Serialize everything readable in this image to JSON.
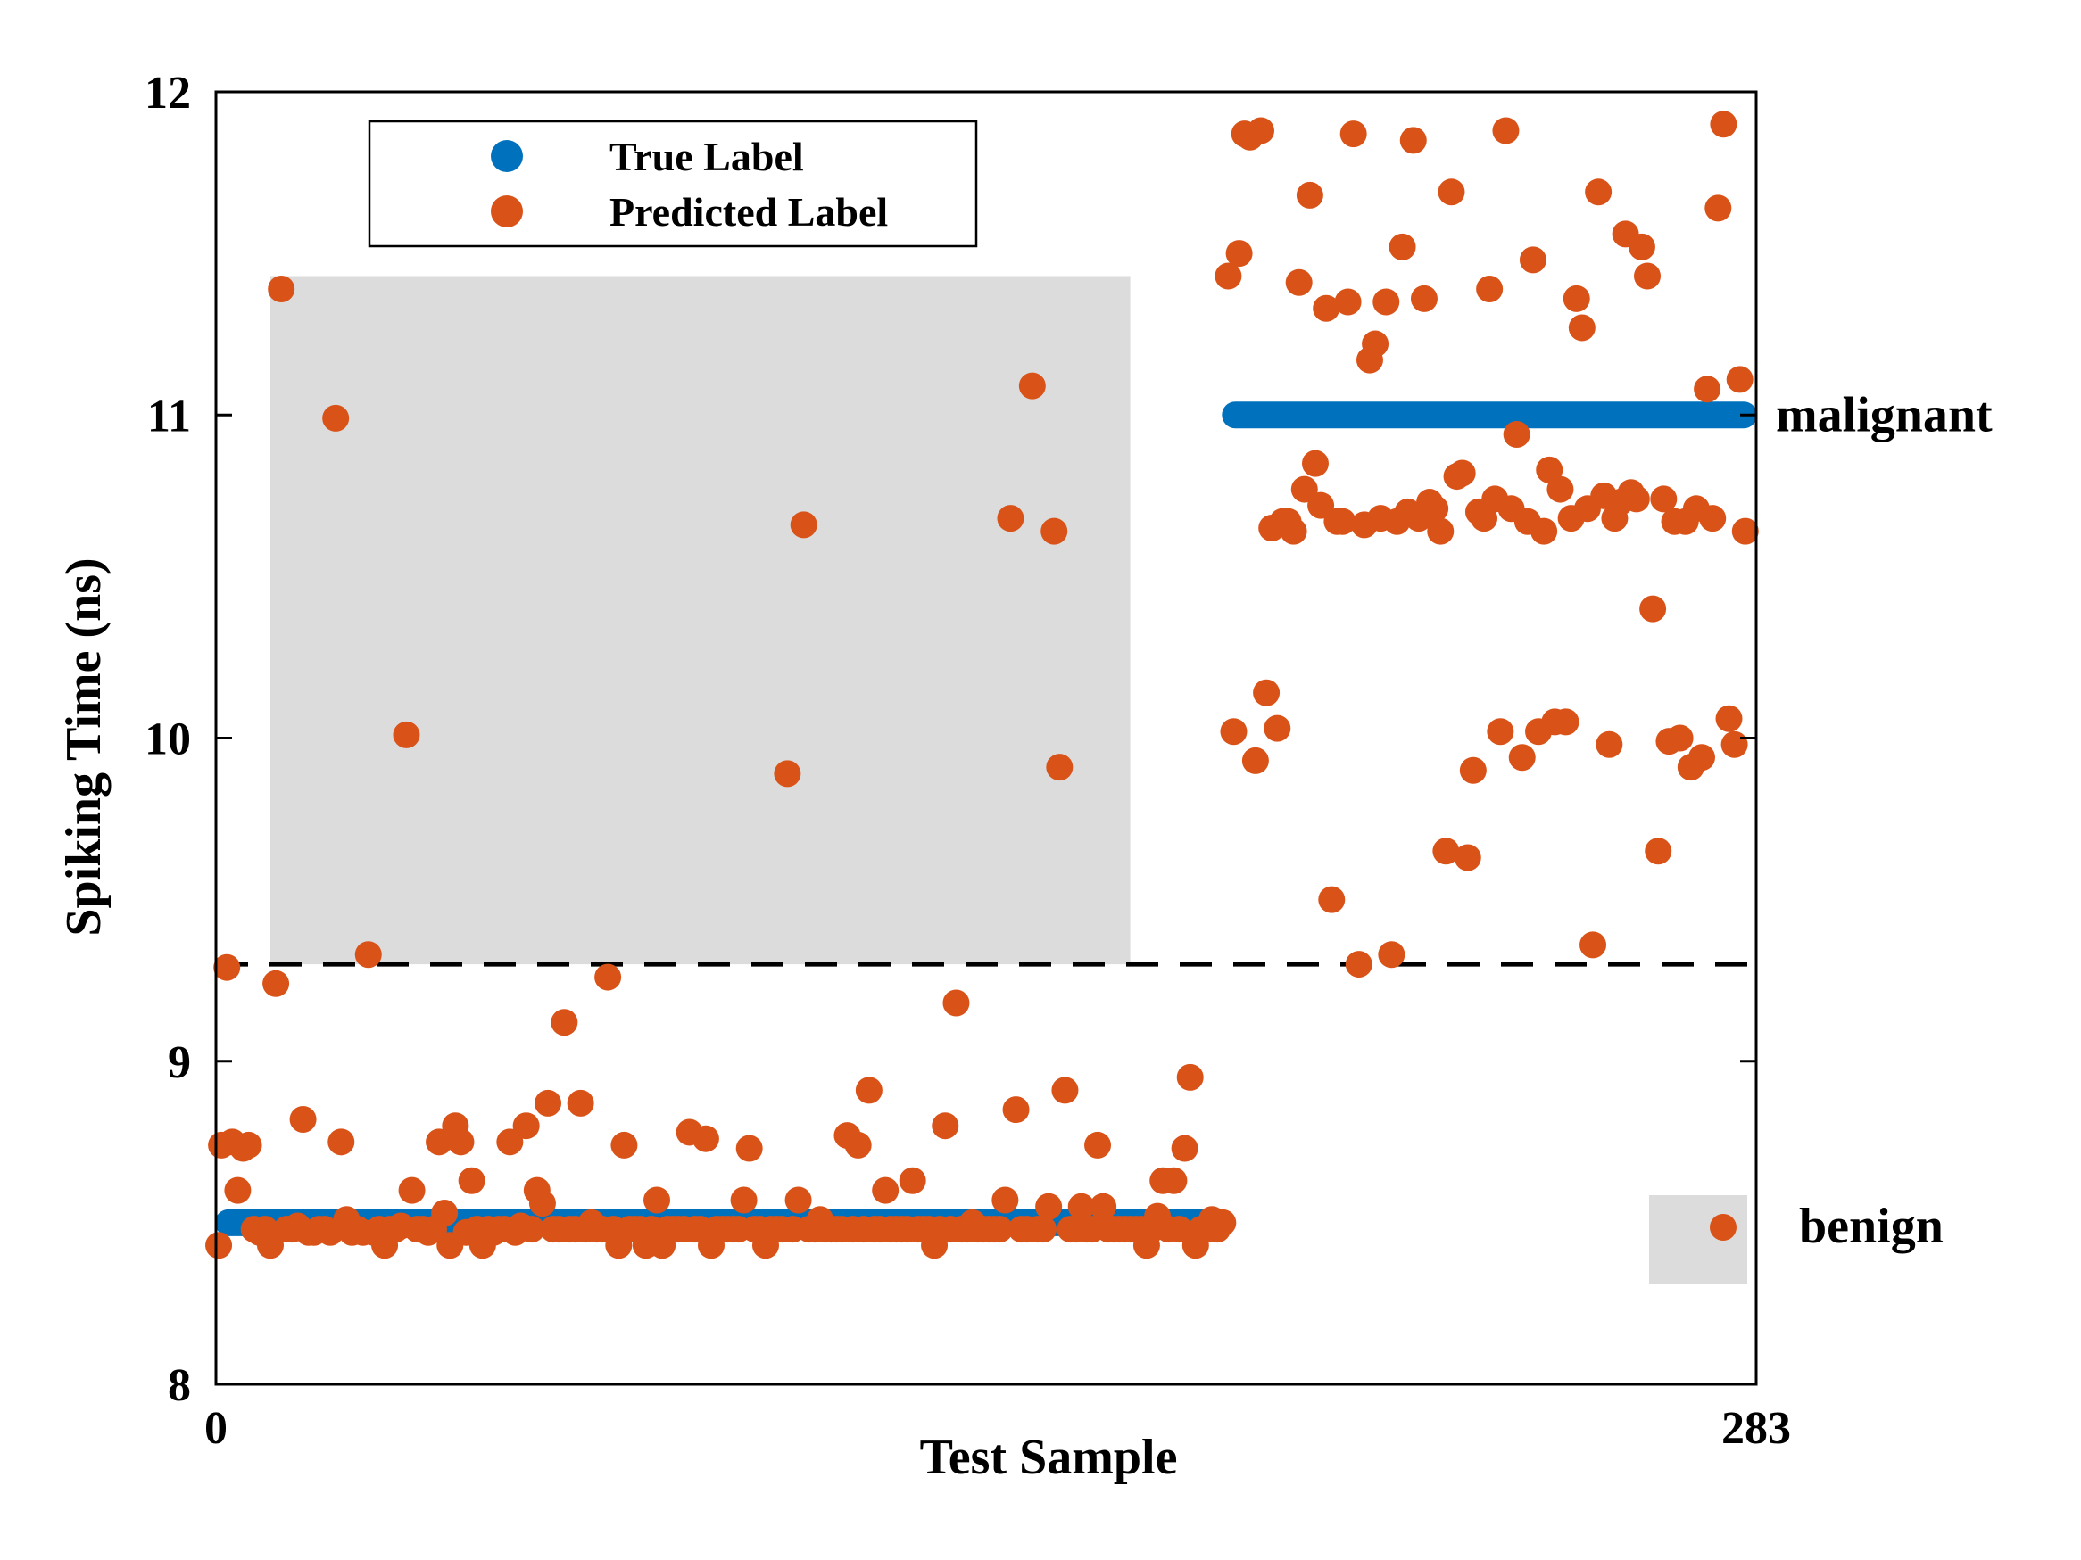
{
  "chart_data": {
    "type": "scatter",
    "xlabel": "Test Sample",
    "ylabel": "Spiking Time (ns)",
    "xlim": [
      0,
      283
    ],
    "ylim": [
      8,
      12
    ],
    "x_ticks": [
      "0",
      "283"
    ],
    "y_ticks": [
      "8",
      "9",
      "10",
      "11",
      "12"
    ],
    "threshold": 9.3,
    "grid": false,
    "legend": {
      "placement": "top-left",
      "entries": [
        "True Label",
        "Predicted Label"
      ]
    },
    "side_labels": {
      "upper": "malignant",
      "lower": "benign"
    },
    "colors": {
      "true": "#0072BD",
      "predicted": "#D95319",
      "misclassified_region": "#dcdcdc",
      "threshold": "#000000"
    },
    "misclassified_region": {
      "x": [
        10,
        168
      ],
      "y": [
        9.3,
        11.43
      ]
    },
    "series": [
      {
        "name": "True Label",
        "segments": [
          {
            "x": [
              0,
              185
            ],
            "y": 8.5
          },
          {
            "x": [
              185,
              283
            ],
            "y": 11
          }
        ]
      },
      {
        "name": "Predicted Label",
        "points": [
          [
            0.5,
            8.43
          ],
          [
            1,
            8.74
          ],
          [
            2,
            9.29
          ],
          [
            3,
            8.75
          ],
          [
            4,
            8.6
          ],
          [
            5,
            8.73
          ],
          [
            6,
            8.74
          ],
          [
            7,
            8.48
          ],
          [
            8,
            8.47
          ],
          [
            9,
            8.48
          ],
          [
            10,
            8.43
          ],
          [
            11,
            9.24
          ],
          [
            12,
            11.39
          ],
          [
            13,
            8.48
          ],
          [
            14,
            8.48
          ],
          [
            15,
            8.49
          ],
          [
            16,
            8.82
          ],
          [
            17,
            8.47
          ],
          [
            18,
            8.47
          ],
          [
            19,
            8.48
          ],
          [
            20,
            8.48
          ],
          [
            21,
            8.47
          ],
          [
            22,
            10.99
          ],
          [
            23,
            8.75
          ],
          [
            24,
            8.51
          ],
          [
            25,
            8.47
          ],
          [
            26,
            8.48
          ],
          [
            27,
            8.47
          ],
          [
            28,
            9.33
          ],
          [
            29,
            8.47
          ],
          [
            30,
            8.48
          ],
          [
            31,
            8.43
          ],
          [
            32,
            8.48
          ],
          [
            33,
            8.48
          ],
          [
            34,
            8.49
          ],
          [
            35,
            10.01
          ],
          [
            36,
            8.6
          ],
          [
            37,
            8.48
          ],
          [
            38,
            8.48
          ],
          [
            39,
            8.47
          ],
          [
            40,
            8.48
          ],
          [
            41,
            8.75
          ],
          [
            42,
            8.53
          ],
          [
            43,
            8.43
          ],
          [
            44,
            8.8
          ],
          [
            45,
            8.75
          ],
          [
            46,
            8.47
          ],
          [
            47,
            8.63
          ],
          [
            48,
            8.48
          ],
          [
            49,
            8.43
          ],
          [
            50,
            8.48
          ],
          [
            51,
            8.47
          ],
          [
            52,
            8.48
          ],
          [
            53,
            8.48
          ],
          [
            54,
            8.75
          ],
          [
            55,
            8.47
          ],
          [
            56,
            8.49
          ],
          [
            57,
            8.8
          ],
          [
            58,
            8.48
          ],
          [
            59,
            8.6
          ],
          [
            60,
            8.56
          ],
          [
            61,
            8.87
          ],
          [
            62,
            8.48
          ],
          [
            63,
            8.48
          ],
          [
            64,
            9.12
          ],
          [
            65,
            8.48
          ],
          [
            66,
            8.48
          ],
          [
            67,
            8.87
          ],
          [
            68,
            8.48
          ],
          [
            69,
            8.5
          ],
          [
            70,
            8.48
          ],
          [
            71,
            8.48
          ],
          [
            72,
            9.26
          ],
          [
            73,
            8.48
          ],
          [
            74,
            8.43
          ],
          [
            75,
            8.74
          ],
          [
            76,
            8.48
          ],
          [
            77,
            8.48
          ],
          [
            78,
            8.48
          ],
          [
            79,
            8.43
          ],
          [
            80,
            8.48
          ],
          [
            81,
            8.57
          ],
          [
            82,
            8.43
          ],
          [
            83,
            8.48
          ],
          [
            84,
            8.48
          ],
          [
            85,
            8.48
          ],
          [
            86,
            8.48
          ],
          [
            87,
            8.78
          ],
          [
            88,
            8.48
          ],
          [
            89,
            8.48
          ],
          [
            90,
            8.76
          ],
          [
            91,
            8.43
          ],
          [
            92,
            8.48
          ],
          [
            93,
            8.48
          ],
          [
            94,
            8.48
          ],
          [
            95,
            8.48
          ],
          [
            96,
            8.48
          ],
          [
            97,
            8.57
          ],
          [
            98,
            8.73
          ],
          [
            99,
            8.48
          ],
          [
            100,
            8.48
          ],
          [
            101,
            8.43
          ],
          [
            102,
            8.48
          ],
          [
            103,
            8.48
          ],
          [
            104,
            8.48
          ],
          [
            105,
            9.89
          ],
          [
            106,
            8.48
          ],
          [
            107,
            8.57
          ],
          [
            108,
            10.66
          ],
          [
            109,
            8.48
          ],
          [
            110,
            8.48
          ],
          [
            111,
            8.51
          ],
          [
            112,
            8.48
          ],
          [
            113,
            8.48
          ],
          [
            114,
            8.48
          ],
          [
            115,
            8.48
          ],
          [
            116,
            8.77
          ],
          [
            117,
            8.48
          ],
          [
            118,
            8.74
          ],
          [
            119,
            8.48
          ],
          [
            120,
            8.91
          ],
          [
            121,
            8.48
          ],
          [
            122,
            8.48
          ],
          [
            123,
            8.6
          ],
          [
            124,
            8.48
          ],
          [
            125,
            8.48
          ],
          [
            126,
            8.48
          ],
          [
            127,
            8.48
          ],
          [
            128,
            8.63
          ],
          [
            129,
            8.48
          ],
          [
            130,
            8.48
          ],
          [
            131,
            8.48
          ],
          [
            132,
            8.43
          ],
          [
            133,
            8.48
          ],
          [
            134,
            8.8
          ],
          [
            135,
            8.48
          ],
          [
            136,
            9.18
          ],
          [
            137,
            8.48
          ],
          [
            138,
            8.48
          ],
          [
            139,
            8.5
          ],
          [
            140,
            8.48
          ],
          [
            141,
            8.48
          ],
          [
            142,
            8.48
          ],
          [
            143,
            8.48
          ],
          [
            144,
            8.48
          ],
          [
            145,
            8.57
          ],
          [
            146,
            10.68
          ],
          [
            147,
            8.85
          ],
          [
            148,
            8.48
          ],
          [
            149,
            8.48
          ],
          [
            150,
            11.09
          ],
          [
            151,
            8.48
          ],
          [
            152,
            8.48
          ],
          [
            153,
            8.55
          ],
          [
            154,
            10.64
          ],
          [
            155,
            9.91
          ],
          [
            156,
            8.91
          ],
          [
            157,
            8.48
          ],
          [
            158,
            8.48
          ],
          [
            159,
            8.55
          ],
          [
            160,
            8.48
          ],
          [
            161,
            8.48
          ],
          [
            162,
            8.74
          ],
          [
            163,
            8.55
          ],
          [
            164,
            8.48
          ],
          [
            165,
            8.48
          ],
          [
            166,
            8.48
          ],
          [
            167,
            8.48
          ],
          [
            168,
            8.48
          ],
          [
            169,
            8.48
          ],
          [
            170,
            8.48
          ],
          [
            171,
            8.43
          ],
          [
            172,
            8.48
          ],
          [
            173,
            8.52
          ],
          [
            174,
            8.63
          ],
          [
            175,
            8.48
          ],
          [
            176,
            8.63
          ],
          [
            177,
            8.48
          ],
          [
            178,
            8.73
          ],
          [
            179,
            8.95
          ],
          [
            180,
            8.43
          ],
          [
            181,
            8.48
          ],
          [
            182,
            8.48
          ],
          [
            183,
            8.51
          ],
          [
            184,
            8.48
          ],
          [
            185,
            8.5
          ],
          [
            186,
            11.43
          ],
          [
            187,
            10.02
          ],
          [
            188,
            11.5
          ],
          [
            189,
            11.87
          ],
          [
            190,
            11.86
          ],
          [
            191,
            9.93
          ],
          [
            192,
            11.88
          ],
          [
            193,
            10.14
          ],
          [
            194,
            10.65
          ],
          [
            195,
            10.03
          ],
          [
            196,
            10.67
          ],
          [
            197,
            10.67
          ],
          [
            198,
            10.64
          ],
          [
            199,
            11.41
          ],
          [
            200,
            10.77
          ],
          [
            201,
            11.68
          ],
          [
            202,
            10.85
          ],
          [
            203,
            10.72
          ],
          [
            204,
            11.33
          ],
          [
            205,
            9.5
          ],
          [
            206,
            10.67
          ],
          [
            207,
            10.67
          ],
          [
            208,
            11.35
          ],
          [
            209,
            11.87
          ],
          [
            210,
            9.3
          ],
          [
            211,
            10.66
          ],
          [
            212,
            11.17
          ],
          [
            213,
            11.22
          ],
          [
            214,
            10.68
          ],
          [
            215,
            11.35
          ],
          [
            216,
            9.33
          ],
          [
            217,
            10.67
          ],
          [
            218,
            11.52
          ],
          [
            219,
            10.7
          ],
          [
            220,
            11.85
          ],
          [
            221,
            10.68
          ],
          [
            222,
            11.36
          ],
          [
            223,
            10.73
          ],
          [
            224,
            10.71
          ],
          [
            225,
            10.64
          ],
          [
            226,
            9.65
          ],
          [
            227,
            11.69
          ],
          [
            228,
            10.81
          ],
          [
            229,
            10.82
          ],
          [
            230,
            9.63
          ],
          [
            231,
            9.9
          ],
          [
            232,
            10.7
          ],
          [
            233,
            10.68
          ],
          [
            234,
            11.39
          ],
          [
            235,
            10.74
          ],
          [
            236,
            10.02
          ],
          [
            237,
            11.88
          ],
          [
            238,
            10.71
          ],
          [
            239,
            10.94
          ],
          [
            240,
            9.94
          ],
          [
            241,
            10.67
          ],
          [
            242,
            11.48
          ],
          [
            243,
            10.02
          ],
          [
            244,
            10.64
          ],
          [
            245,
            10.83
          ],
          [
            246,
            10.05
          ],
          [
            247,
            10.77
          ],
          [
            248,
            10.05
          ],
          [
            249,
            10.68
          ],
          [
            250,
            11.36
          ],
          [
            251,
            11.27
          ],
          [
            252,
            10.71
          ],
          [
            253,
            9.36
          ],
          [
            254,
            11.69
          ],
          [
            255,
            10.75
          ],
          [
            256,
            9.98
          ],
          [
            257,
            10.68
          ],
          [
            258,
            10.73
          ],
          [
            259,
            11.56
          ],
          [
            260,
            10.76
          ],
          [
            261,
            10.74
          ],
          [
            262,
            11.52
          ],
          [
            263,
            11.43
          ],
          [
            264,
            10.4
          ],
          [
            265,
            9.65
          ],
          [
            266,
            10.74
          ],
          [
            267,
            9.99
          ],
          [
            268,
            10.67
          ],
          [
            269,
            10.0
          ],
          [
            270,
            10.67
          ],
          [
            271,
            9.91
          ],
          [
            272,
            10.71
          ],
          [
            273,
            9.94
          ],
          [
            274,
            11.08
          ],
          [
            275,
            10.68
          ],
          [
            276,
            11.64
          ],
          [
            277,
            11.9
          ],
          [
            278,
            10.06
          ],
          [
            279,
            9.98
          ],
          [
            280,
            11.11
          ],
          [
            281,
            10.64
          ]
        ]
      }
    ],
    "legend_sample_benign": {
      "x": 277,
      "y": 8.48
    }
  }
}
